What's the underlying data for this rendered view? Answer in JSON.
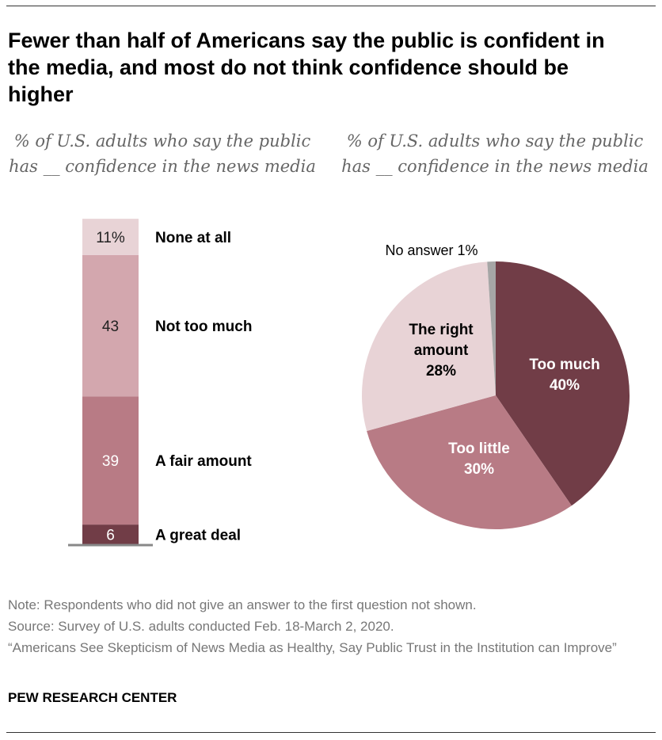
{
  "title": "Fewer than half of Americans say the public is confident in the media, and most do not think confidence should be higher",
  "chart_data": [
    {
      "type": "bar",
      "subtitle": "% of U.S. adults who say the public has __ confidence in the news media",
      "stacked": true,
      "categories": [
        "A great deal",
        "A fair amount",
        "Not too much",
        "None at all"
      ],
      "values": [
        6,
        39,
        43,
        11
      ],
      "value_labels": [
        "6",
        "39",
        "43",
        "11%"
      ],
      "colors": [
        "#713d47",
        "#b87b85",
        "#d3a7ae",
        "#e8d3d6"
      ],
      "label_colors": [
        "#ffffff",
        "#ffffff",
        "#222222",
        "#222222"
      ]
    },
    {
      "type": "pie",
      "subtitle": "% of U.S. adults who say the public has __ confidence in the news media",
      "categories": [
        "Too much",
        "Too little",
        "The right amount",
        "No answer"
      ],
      "values": [
        40,
        30,
        28,
        1
      ],
      "labels": [
        "Too much 40%",
        "Too little 30%",
        "The right amount 28%",
        "No answer 1%"
      ],
      "colors": [
        "#713d47",
        "#b87b85",
        "#e8d3d6",
        "#a6a6a6"
      ]
    }
  ],
  "notes": [
    "Note: Respondents who did not give an answer to the first question not shown.",
    "Source: Survey of U.S. adults conducted Feb. 18-March 2, 2020.",
    "“Americans See Skepticism of News Media as Healthy, Say Public Trust in the Institution can Improve”"
  ],
  "brand": "PEW RESEARCH CENTER"
}
